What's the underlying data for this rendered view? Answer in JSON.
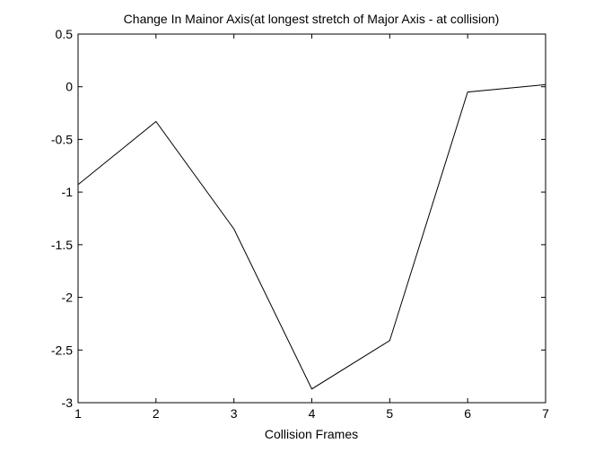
{
  "chart_data": {
    "type": "line",
    "title": "Change In Mainor Axis(at longest stretch of Major Axis - at collision)",
    "xlabel": "Collision Frames",
    "ylabel": "",
    "xlim": [
      1,
      7
    ],
    "ylim": [
      -3,
      0.5
    ],
    "xticks": [
      1,
      2,
      3,
      4,
      5,
      6,
      7
    ],
    "yticks": [
      0.5,
      0,
      -0.5,
      -1,
      -1.5,
      -2,
      -2.5,
      -3
    ],
    "grid": false,
    "legend": "none",
    "series": [
      {
        "x": [
          1,
          2,
          3,
          4,
          5,
          6,
          7
        ],
        "y": [
          -0.93,
          -0.33,
          -1.35,
          -2.87,
          -2.41,
          -0.05,
          0.02
        ],
        "color": "#000000"
      }
    ]
  }
}
